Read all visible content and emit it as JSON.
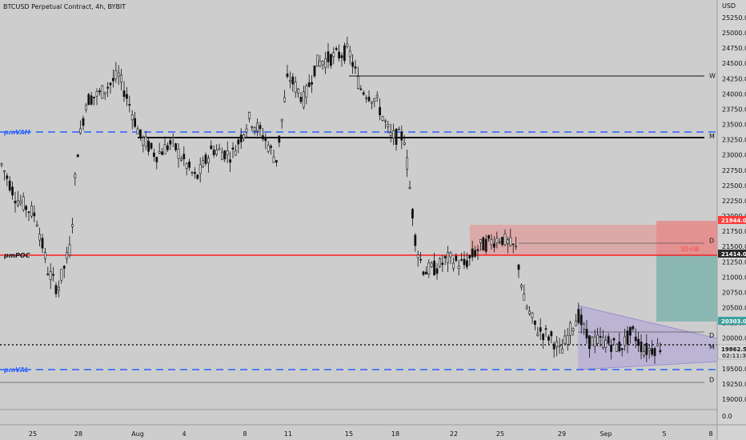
{
  "header": {
    "title": "BTCUSD Perpetual Contract, 4h, BYBIT",
    "currency": "USD"
  },
  "levels": {
    "pmVAH": {
      "label": "pmVAH",
      "price": 23390,
      "color": "#2962ff"
    },
    "pmPOC": {
      "label": "pmPOC",
      "price": 21390,
      "color": "#ff1f1f"
    },
    "pmVAL": {
      "label": "pmVAL",
      "price": 19550,
      "color": "#2962ff"
    }
  },
  "markers": [
    {
      "label": "W",
      "price": 24300
    },
    {
      "label": "M",
      "price": 23310
    },
    {
      "label": "D",
      "price": 21600
    },
    {
      "label": "D",
      "price": 20050
    },
    {
      "label": "M",
      "price": 19860
    },
    {
      "label": "D",
      "price": 19320
    }
  ],
  "price_tags": {
    "ob_top": {
      "text": "21944.0",
      "bg": "#ff3b3b"
    },
    "ob_bottom": {
      "text": "21414.0",
      "bg": "#2a2a2a"
    },
    "green_bottom": {
      "text": "20303.0",
      "bg": "#3f9f9f"
    },
    "last": {
      "text": "19862.5",
      "sub": "02:11:36"
    }
  },
  "annotation": {
    "ob_label": "3D OB",
    "color": "#ff3b3b"
  },
  "y_axis": {
    "ticks": [
      "25250.0",
      "25000.0",
      "24750.0",
      "24500.0",
      "24250.0",
      "24000.0",
      "23750.0",
      "23500.0",
      "23250.0",
      "23000.0",
      "22750.0",
      "22500.0",
      "22250.0",
      "22000.0",
      "21750.0",
      "21500.0",
      "21250.0",
      "21000.0",
      "20750.0",
      "20500.0",
      "20250.0",
      "20000.0",
      "19750.0",
      "19500.0",
      "19250.0",
      "19000.0"
    ],
    "volume_tick": "0.0"
  },
  "x_axis": {
    "ticks": [
      "25",
      "28",
      "Aug",
      "4",
      "8",
      "11",
      "15",
      "18",
      "22",
      "25",
      "29",
      "Sep",
      "5",
      "8"
    ]
  },
  "colors": {
    "candle": "#111111",
    "background": "#cdcdcd"
  }
}
